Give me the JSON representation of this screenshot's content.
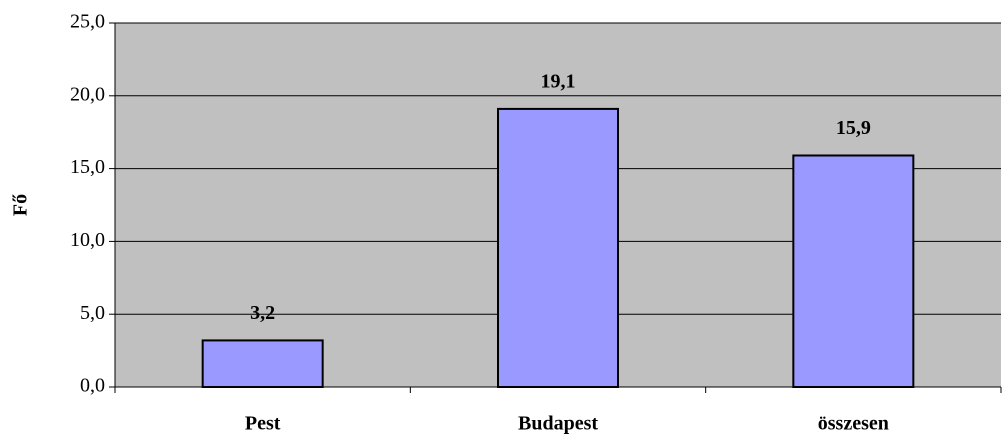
{
  "chart_data": {
    "type": "bar",
    "y_label": "Fő",
    "categories": [
      "Pest",
      "Budapest",
      "összesen"
    ],
    "values": [
      3.2,
      19.1,
      15.9
    ],
    "value_labels": [
      "3,2",
      "19,1",
      "15,9"
    ],
    "color": "#9999ff",
    "plot_background": "#c0c0c0",
    "ylim": [
      0,
      25
    ],
    "yticks": [
      {
        "value": 0,
        "label": "0,0"
      },
      {
        "value": 5,
        "label": "5,0"
      },
      {
        "value": 10,
        "label": "10,0"
      },
      {
        "value": 15,
        "label": "15,0"
      },
      {
        "value": 20,
        "label": "20,0"
      },
      {
        "value": 25,
        "label": "25,0"
      }
    ],
    "grid": true
  }
}
